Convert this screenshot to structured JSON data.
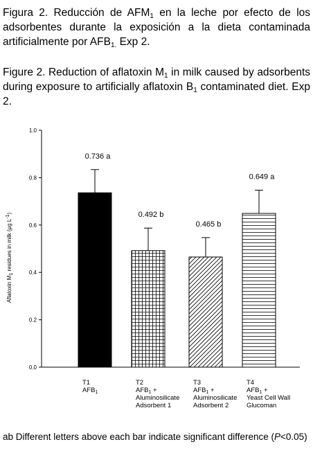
{
  "caption_es": {
    "p1": "Figura 2. Reducción de AFM",
    "s1": "1",
    "p2": " en la leche por efecto de los adsorbentes durante la exposición a la dieta contaminada artificialmente por AFB",
    "s2": "1.",
    "p3": " Exp 2."
  },
  "caption_en": {
    "p1": "Figure 2.  Reduction of aflatoxin M",
    "s1": "1",
    "p2": " in milk caused by adsorbents during exposure to artificially aflatoxin B",
    "s2": "1",
    "p3": " contaminated diet. Exp 2."
  },
  "footnote": {
    "p1": "ab Different letters above each bar indicate significant difference (",
    "italic": "P",
    "p2": "<0.05)"
  },
  "chart_data": {
    "type": "bar",
    "ylabel_parts": [
      "Aflatoxin M",
      "1",
      " residues in milk (μg L",
      "-1",
      ")"
    ],
    "ylim": [
      0,
      1.0
    ],
    "yticks": [
      "0.0",
      "0.2",
      "0.4",
      "0.6",
      "0.8",
      "1.0"
    ],
    "grid": false,
    "bars": [
      {
        "value": 0.736,
        "error": 0.098,
        "label": "0.736 a",
        "fill": "solid",
        "color": "#000000",
        "cat_lines": [
          [
            "T1"
          ],
          [
            "AFB",
            "1"
          ]
        ]
      },
      {
        "value": 0.492,
        "error": 0.095,
        "label": "0.492 b",
        "fill": "grid",
        "cat_lines": [
          [
            "T2"
          ],
          [
            "AFB",
            "1",
            " +"
          ],
          [
            "Aluminosilicate"
          ],
          [
            "Adsorbent  1"
          ]
        ]
      },
      {
        "value": 0.465,
        "error": 0.082,
        "label": "0.465 b",
        "fill": "diagonal",
        "cat_lines": [
          [
            "T3"
          ],
          [
            "AFB",
            "1",
            " +"
          ],
          [
            "Aluminosilicate"
          ],
          [
            "Adsorbent  2"
          ]
        ]
      },
      {
        "value": 0.649,
        "error": 0.098,
        "label": "0.649 a",
        "fill": "horizontal",
        "cat_lines": [
          [
            "T4"
          ],
          [
            "AFB",
            "1",
            " +"
          ],
          [
            "Yeast Cell Wall"
          ],
          [
            "Glucoman"
          ]
        ]
      }
    ]
  }
}
